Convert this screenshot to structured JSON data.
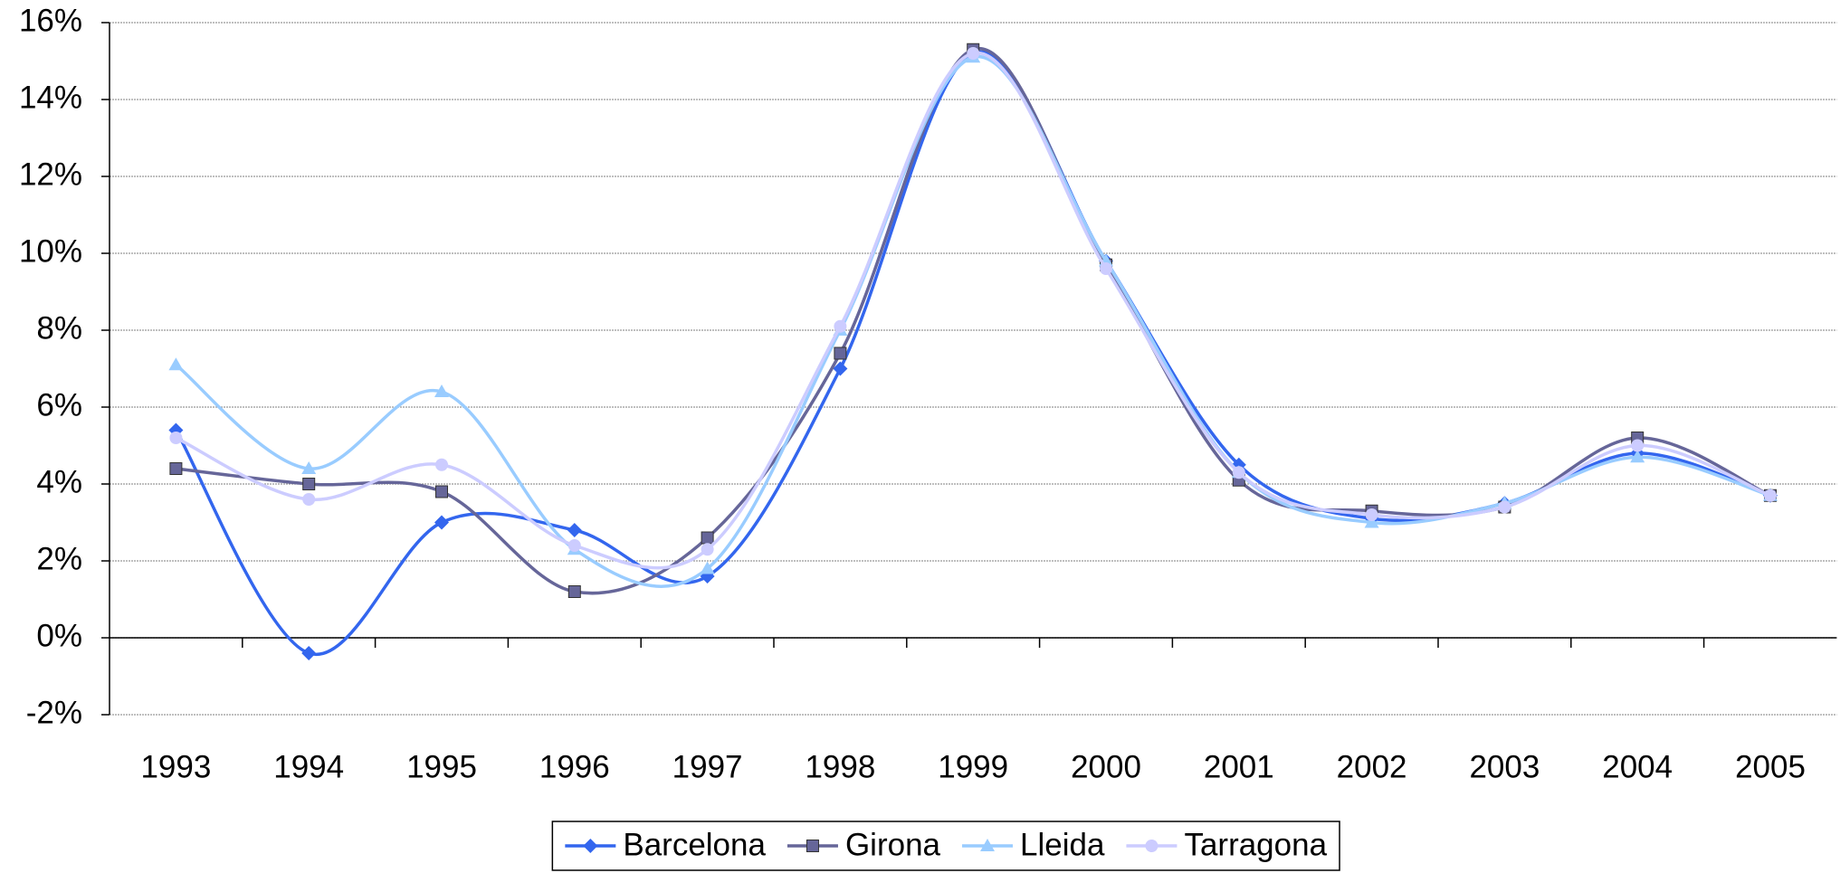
{
  "chart_data": {
    "type": "line",
    "categories": [
      "1993",
      "1994",
      "1995",
      "1996",
      "1997",
      "1998",
      "1999",
      "2000",
      "2001",
      "2002",
      "2003",
      "2004",
      "2005"
    ],
    "series": [
      {
        "name": "Barcelona",
        "color": "#3366ee",
        "marker": "diamond",
        "values": [
          5.4,
          -0.4,
          3.0,
          2.8,
          1.6,
          7.0,
          15.2,
          9.8,
          4.5,
          3.1,
          3.5,
          4.8,
          3.7
        ]
      },
      {
        "name": "Girona",
        "color": "#666699",
        "marker": "square",
        "values": [
          4.4,
          4.0,
          3.8,
          1.2,
          2.6,
          7.4,
          15.3,
          9.7,
          4.1,
          3.3,
          3.4,
          5.2,
          3.7
        ]
      },
      {
        "name": "Lleida",
        "color": "#99ccff",
        "marker": "triangle",
        "values": [
          7.1,
          4.4,
          6.4,
          2.3,
          1.8,
          8.0,
          15.1,
          9.8,
          4.3,
          3.0,
          3.5,
          4.7,
          3.7
        ]
      },
      {
        "name": "Tarragona",
        "color": "#ccccff",
        "marker": "circle",
        "values": [
          5.2,
          3.6,
          4.5,
          2.4,
          2.3,
          8.1,
          15.2,
          9.6,
          4.3,
          3.2,
          3.4,
          5.0,
          3.7
        ]
      }
    ],
    "ylim": [
      -2,
      16
    ],
    "yticks": [
      {
        "value": -2,
        "label": "-2%"
      },
      {
        "value": 0,
        "label": "0%"
      },
      {
        "value": 2,
        "label": "2%"
      },
      {
        "value": 4,
        "label": "4%"
      },
      {
        "value": 6,
        "label": "6%"
      },
      {
        "value": 8,
        "label": "8%"
      },
      {
        "value": 10,
        "label": "10%"
      },
      {
        "value": 12,
        "label": "12%"
      },
      {
        "value": 14,
        "label": "14%"
      },
      {
        "value": 16,
        "label": "16%"
      }
    ],
    "grid": true,
    "smooth": true,
    "legend": "bottom"
  }
}
